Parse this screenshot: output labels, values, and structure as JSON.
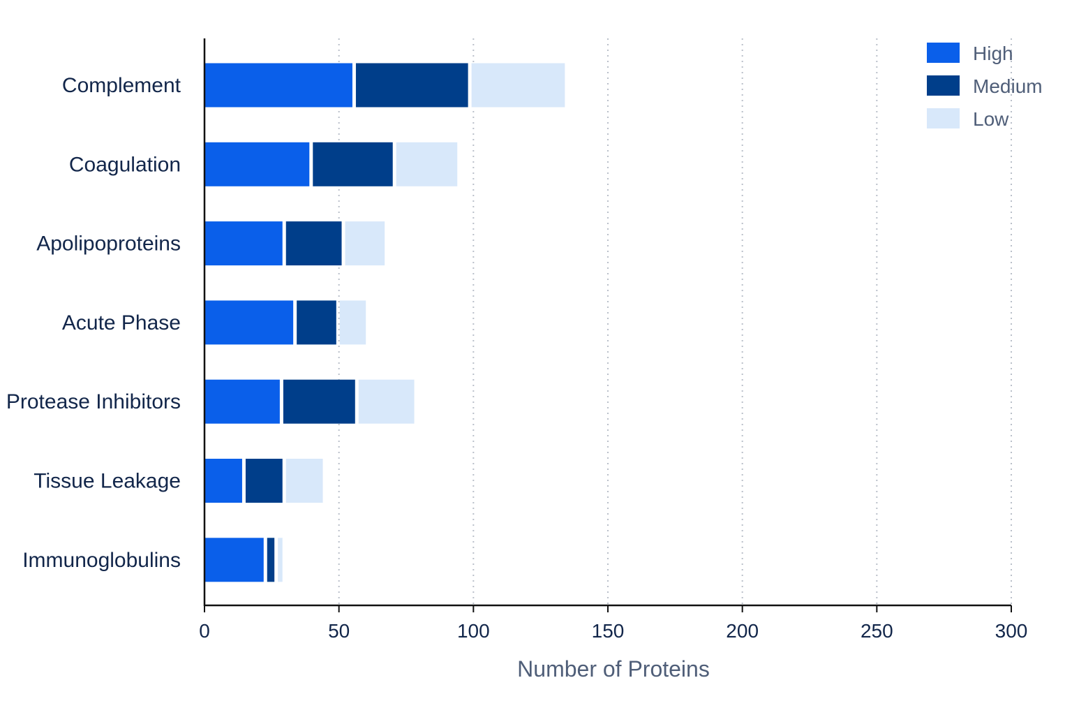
{
  "chart_data": {
    "type": "bar",
    "orientation": "horizontal",
    "stacked": true,
    "title": "",
    "xlabel": "Number of Proteins",
    "ylabel": "",
    "xlim": [
      0,
      300
    ],
    "xticks": [
      0,
      50,
      100,
      150,
      200,
      250,
      300
    ],
    "grid": "vertical dotted",
    "legend_position": "top-right",
    "categories": [
      "Complement",
      "Coagulation",
      "Apolipoproteins",
      "Acute Phase",
      "Protease Inhibitors",
      "Tissue Leakage",
      "Immunoglobulins"
    ],
    "series": [
      {
        "name": "High",
        "color": "#0a5fea",
        "values": [
          55,
          39,
          29,
          33,
          28,
          14,
          22
        ]
      },
      {
        "name": "Medium",
        "color": "#003e8a",
        "values": [
          43,
          31,
          22,
          16,
          28,
          15,
          4
        ]
      },
      {
        "name": "Low",
        "color": "#d8e8fa",
        "values": [
          36,
          24,
          16,
          11,
          22,
          15,
          3
        ]
      }
    ]
  }
}
